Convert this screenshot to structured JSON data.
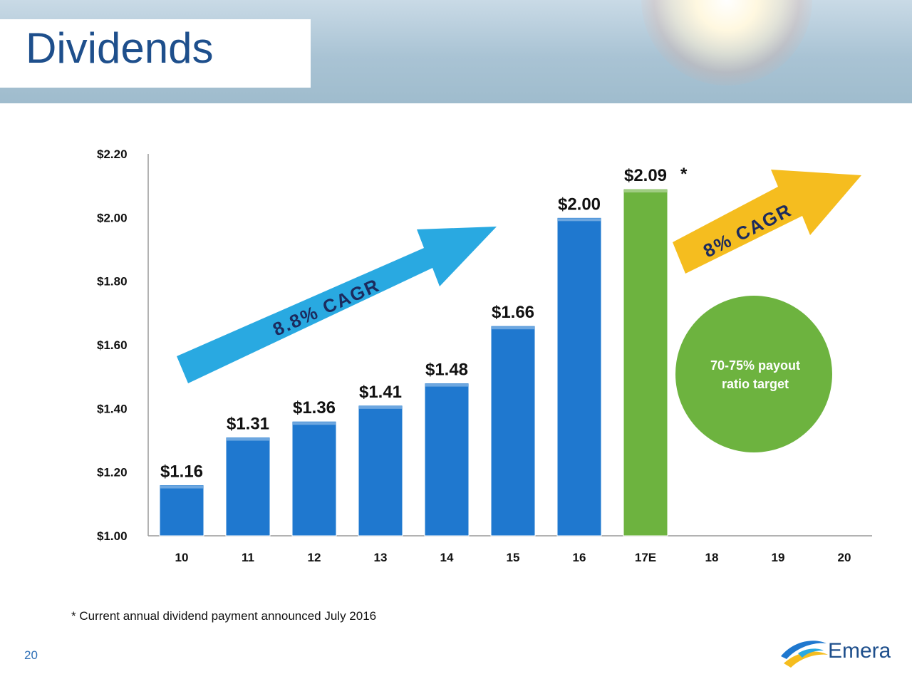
{
  "slide": {
    "title": "Dividends",
    "footnote": "* Current annual dividend payment announced July 2016",
    "page_number": "20",
    "logo_text": "Emera"
  },
  "colors": {
    "title": "#1e4f8c",
    "bar": "#1f78cf",
    "bar_estimate": "#6db33f",
    "arrow_past": "#29a9e1",
    "arrow_future": "#f5bd1f",
    "payout_circle": "#6db33f",
    "cagr_text": "#1c2b5e"
  },
  "chart_data": {
    "type": "bar",
    "categories": [
      "10",
      "11",
      "12",
      "13",
      "14",
      "15",
      "16",
      "17E",
      "18",
      "19",
      "20"
    ],
    "values": [
      1.16,
      1.31,
      1.36,
      1.41,
      1.48,
      1.66,
      2.0,
      2.09,
      null,
      null,
      null
    ],
    "value_labels": [
      "$1.16",
      "$1.31",
      "$1.36",
      "$1.41",
      "$1.48",
      "$1.66",
      "$2.00",
      "$2.09",
      "",
      "",
      ""
    ],
    "estimate_index": 7,
    "estimate_marker": "*",
    "ylim": [
      1.0,
      2.2
    ],
    "yticks": [
      1.0,
      1.2,
      1.4,
      1.6,
      1.8,
      2.0,
      2.2
    ],
    "ytick_labels": [
      "$1.00",
      "$1.20",
      "$1.40",
      "$1.60",
      "$1.80",
      "$2.00",
      "$2.20"
    ],
    "grid": false,
    "annotations": {
      "past_cagr": "8.8% CAGR",
      "future_cagr": "8% CAGR",
      "payout_line1": "70-75% payout",
      "payout_line2": "ratio target"
    }
  }
}
